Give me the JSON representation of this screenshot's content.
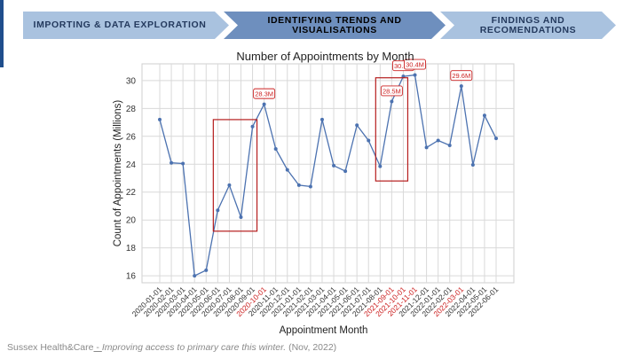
{
  "process_steps": [
    {
      "label": "IMPORTING & DATA EXPLORATION"
    },
    {
      "label": "IDENTIFYING TRENDS AND VISUALISATIONS"
    },
    {
      "label": "FINDINGS AND RECOMENDATIONS"
    }
  ],
  "colors": {
    "step_light": "#a9c2df",
    "step_active": "#6e8fbe",
    "line": "#4c72b0",
    "highlight": "#cc2222",
    "grid": "#d9d9d9"
  },
  "chart_data": {
    "type": "line",
    "title": "Number of Appointments by Month",
    "xlabel": "Appointment Month",
    "ylabel": "Count of Appointments (Millions)",
    "ylim": [
      15.5,
      31.2
    ],
    "yticks": [
      16,
      18,
      20,
      22,
      24,
      26,
      28,
      30
    ],
    "grid": true,
    "categories": [
      "2020-01-01",
      "2020-02-01",
      "2020-03-01",
      "2020-04-01",
      "2020-05-01",
      "2020-06-01",
      "2020-07-01",
      "2020-08-01",
      "2020-09-01",
      "2020-10-01",
      "2020-11-01",
      "2020-12-01",
      "2021-01-01",
      "2021-02-01",
      "2021-03-01",
      "2021-04-01",
      "2021-05-01",
      "2021-06-01",
      "2021-07-01",
      "2021-08-01",
      "2021-09-01",
      "2021-10-01",
      "2021-11-01",
      "2021-12-01",
      "2022-01-01",
      "2022-02-01",
      "2022-03-01",
      "2022-04-01",
      "2022-05-01",
      "2022-06-01"
    ],
    "values": [
      27.2,
      24.1,
      24.05,
      16.0,
      16.4,
      20.7,
      22.5,
      20.2,
      26.7,
      28.3,
      25.1,
      23.6,
      22.5,
      22.4,
      27.2,
      23.9,
      23.5,
      26.8,
      25.7,
      23.85,
      28.5,
      30.3,
      30.4,
      25.2,
      25.7,
      25.35,
      29.6,
      23.95,
      27.5,
      25.85
    ],
    "highlighted_ticks": [
      "2020-10-01",
      "2021-09-01",
      "2021-10-01",
      "2021-11-01",
      "2022-03-01"
    ],
    "annotations": [
      {
        "category": "2020-10-01",
        "text": "28.3M"
      },
      {
        "category": "2021-09-01",
        "text": "28.5M"
      },
      {
        "category": "2021-10-01",
        "text": "30.3M"
      },
      {
        "category": "2021-11-01",
        "text": "30.4M"
      },
      {
        "category": "2022-03-01",
        "text": "29.6M"
      }
    ],
    "highlight_boxes": [
      {
        "from": "2020-06-01",
        "to": "2020-09-01",
        "y_from": 19.2,
        "y_to": 27.2
      },
      {
        "from": "2021-08-01",
        "to": "2021-10-01",
        "y_from": 22.8,
        "y_to": 30.2
      }
    ]
  },
  "footer": {
    "source_org": "Sussex Health&Care",
    "separator": " - ",
    "source_title": "Improving access to primary care this winter.",
    "source_date": " (Nov, 2022)"
  }
}
